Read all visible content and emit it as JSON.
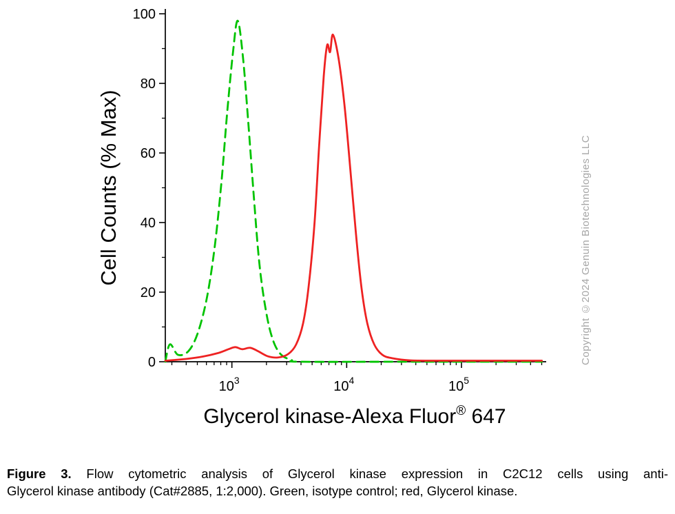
{
  "chart_data": {
    "type": "line",
    "title": "",
    "xlabel": "Glycerol kinase-Alexa Fluor® 647",
    "xlabel_parts": {
      "main": "Glycerol kinase-Alexa Fluor",
      "sup": "®",
      "end": " 647"
    },
    "ylabel": "Cell Counts (% Max)",
    "x_scale": "log10",
    "x_range_log10": [
      2.42,
      5.72
    ],
    "ylim": [
      0,
      100
    ],
    "y_ticks": [
      0,
      20,
      40,
      60,
      80,
      100
    ],
    "y_minor_step": 10,
    "x_major_ticks": [
      {
        "log10": 3,
        "base": "10",
        "exp": "3"
      },
      {
        "log10": 4,
        "base": "10",
        "exp": "4"
      },
      {
        "log10": 5,
        "base": "10",
        "exp": "5"
      }
    ],
    "x_minor_decade_start": 2,
    "x_minor_decade_end": 5,
    "axis_color": "#000000",
    "grid": false,
    "legend_position": "none",
    "series": [
      {
        "name": "isotype control",
        "color": "#00c300",
        "style": "dashed",
        "points": [
          [
            2.42,
            0
          ],
          [
            2.46,
            5
          ],
          [
            2.53,
            2
          ],
          [
            2.62,
            3
          ],
          [
            2.7,
            8
          ],
          [
            2.78,
            18
          ],
          [
            2.85,
            33
          ],
          [
            2.91,
            52
          ],
          [
            2.96,
            72
          ],
          [
            3.01,
            89
          ],
          [
            3.05,
            98
          ],
          [
            3.095,
            88
          ],
          [
            3.14,
            70
          ],
          [
            3.19,
            48
          ],
          [
            3.24,
            28
          ],
          [
            3.3,
            14
          ],
          [
            3.36,
            6
          ],
          [
            3.43,
            2
          ],
          [
            3.52,
            0.5
          ],
          [
            3.6,
            0
          ],
          [
            4.5,
            0
          ],
          [
            5.7,
            0
          ]
        ]
      },
      {
        "name": "Glycerol kinase",
        "color": "#ee2222",
        "style": "solid",
        "points": [
          [
            2.42,
            0.3
          ],
          [
            2.6,
            0.8
          ],
          [
            2.75,
            1.5
          ],
          [
            2.88,
            2.5
          ],
          [
            2.97,
            3.6
          ],
          [
            3.03,
            4.2
          ],
          [
            3.09,
            3.6
          ],
          [
            3.16,
            4.0
          ],
          [
            3.23,
            3.0
          ],
          [
            3.31,
            1.6
          ],
          [
            3.4,
            1.2
          ],
          [
            3.49,
            2.2
          ],
          [
            3.56,
            5
          ],
          [
            3.62,
            11
          ],
          [
            3.67,
            22
          ],
          [
            3.72,
            40
          ],
          [
            3.76,
            62
          ],
          [
            3.8,
            82
          ],
          [
            3.83,
            91
          ],
          [
            3.855,
            89
          ],
          [
            3.88,
            94
          ],
          [
            3.93,
            87
          ],
          [
            3.98,
            74
          ],
          [
            4.03,
            56
          ],
          [
            4.08,
            37
          ],
          [
            4.13,
            21
          ],
          [
            4.18,
            11
          ],
          [
            4.24,
            5
          ],
          [
            4.31,
            2
          ],
          [
            4.4,
            1
          ],
          [
            4.55,
            0.4
          ],
          [
            4.8,
            0.3
          ],
          [
            5.2,
            0.3
          ],
          [
            5.7,
            0.3
          ]
        ]
      }
    ]
  },
  "copyright": "Copyright ©2024 Genuin Biotechnologies LLC",
  "caption": {
    "label": "Figure 3.",
    "line1": " Flow cytometric analysis of Glycerol kinase expression in C2C12 cells using anti-",
    "line2": "Glycerol kinase antibody (Cat#2885, 1:2,000). Green, isotype control; red, Glycerol kinase."
  }
}
